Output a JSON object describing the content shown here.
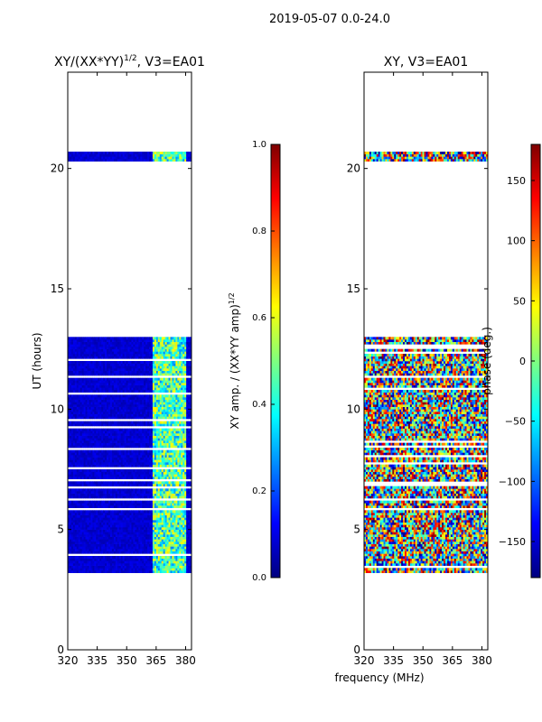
{
  "page": {
    "suptitle": "2019-05-07 0.0-24.0"
  },
  "colors": {
    "jet": [
      "#00007f",
      "#0000ff",
      "#007fff",
      "#00ffff",
      "#7fff7f",
      "#ffff00",
      "#ff7f00",
      "#ff0000",
      "#7f0000"
    ],
    "axes": "#000000",
    "background": "#ffffff"
  },
  "chart_data": [
    {
      "type": "heatmap",
      "name": "amp-ratio",
      "title": "XY/(XX*YY)^{1/2}, V3=EA01",
      "title_main": "XY/(XX*YY)",
      "title_sup": "1/2",
      "title_tail": ", V3=EA01",
      "xlabel": "",
      "ylabel": "UT (hours)",
      "xlim": [
        320,
        383
      ],
      "ylim": [
        0,
        24
      ],
      "xticks": [
        320,
        335,
        350,
        365,
        380
      ],
      "yticks": [
        0,
        5,
        10,
        15,
        20
      ],
      "clim": [
        0,
        1
      ],
      "colorbar_label": "XY amp. / (XX*YY amp)^{1/2}",
      "colorbar_label_main": "XY amp. / (XX*YY amp)",
      "colorbar_label_sup": "1/2",
      "colorbar_ticks": [
        "0.0",
        "0.2",
        "0.4",
        "0.6",
        "0.8",
        "1.0"
      ],
      "data_ut_ranges": [
        [
          3.2,
          13.0
        ],
        [
          20.3,
          20.7
        ]
      ],
      "blank_ut_ranges": [
        [
          0,
          3.2
        ],
        [
          13.0,
          20.3
        ],
        [
          20.7,
          24
        ]
      ],
      "bright_freq_band_mhz": [
        363,
        380
      ],
      "typical_value": 0.05,
      "band_value": 0.45
    },
    {
      "type": "heatmap",
      "name": "phase",
      "title": "XY, V3=EA01",
      "xlabel": "frequency (MHz)",
      "ylabel": "",
      "xlim": [
        320,
        383
      ],
      "ylim": [
        0,
        24
      ],
      "xticks": [
        320,
        335,
        350,
        365,
        380
      ],
      "yticks": [
        0,
        5,
        10,
        15,
        20
      ],
      "clim": [
        -180,
        180
      ],
      "colorbar_label": "phase (deg.)",
      "colorbar_ticks": [
        "−150",
        "−100",
        "−50",
        "0",
        "50",
        "100",
        "150"
      ],
      "colorbar_tick_values": [
        -150,
        -100,
        -50,
        0,
        50,
        100,
        150
      ],
      "data_ut_ranges": [
        [
          3.2,
          13.0
        ],
        [
          20.3,
          20.7
        ]
      ],
      "blank_ut_ranges": [
        [
          0,
          3.2
        ],
        [
          13.0,
          20.3
        ],
        [
          20.7,
          24
        ]
      ]
    }
  ]
}
